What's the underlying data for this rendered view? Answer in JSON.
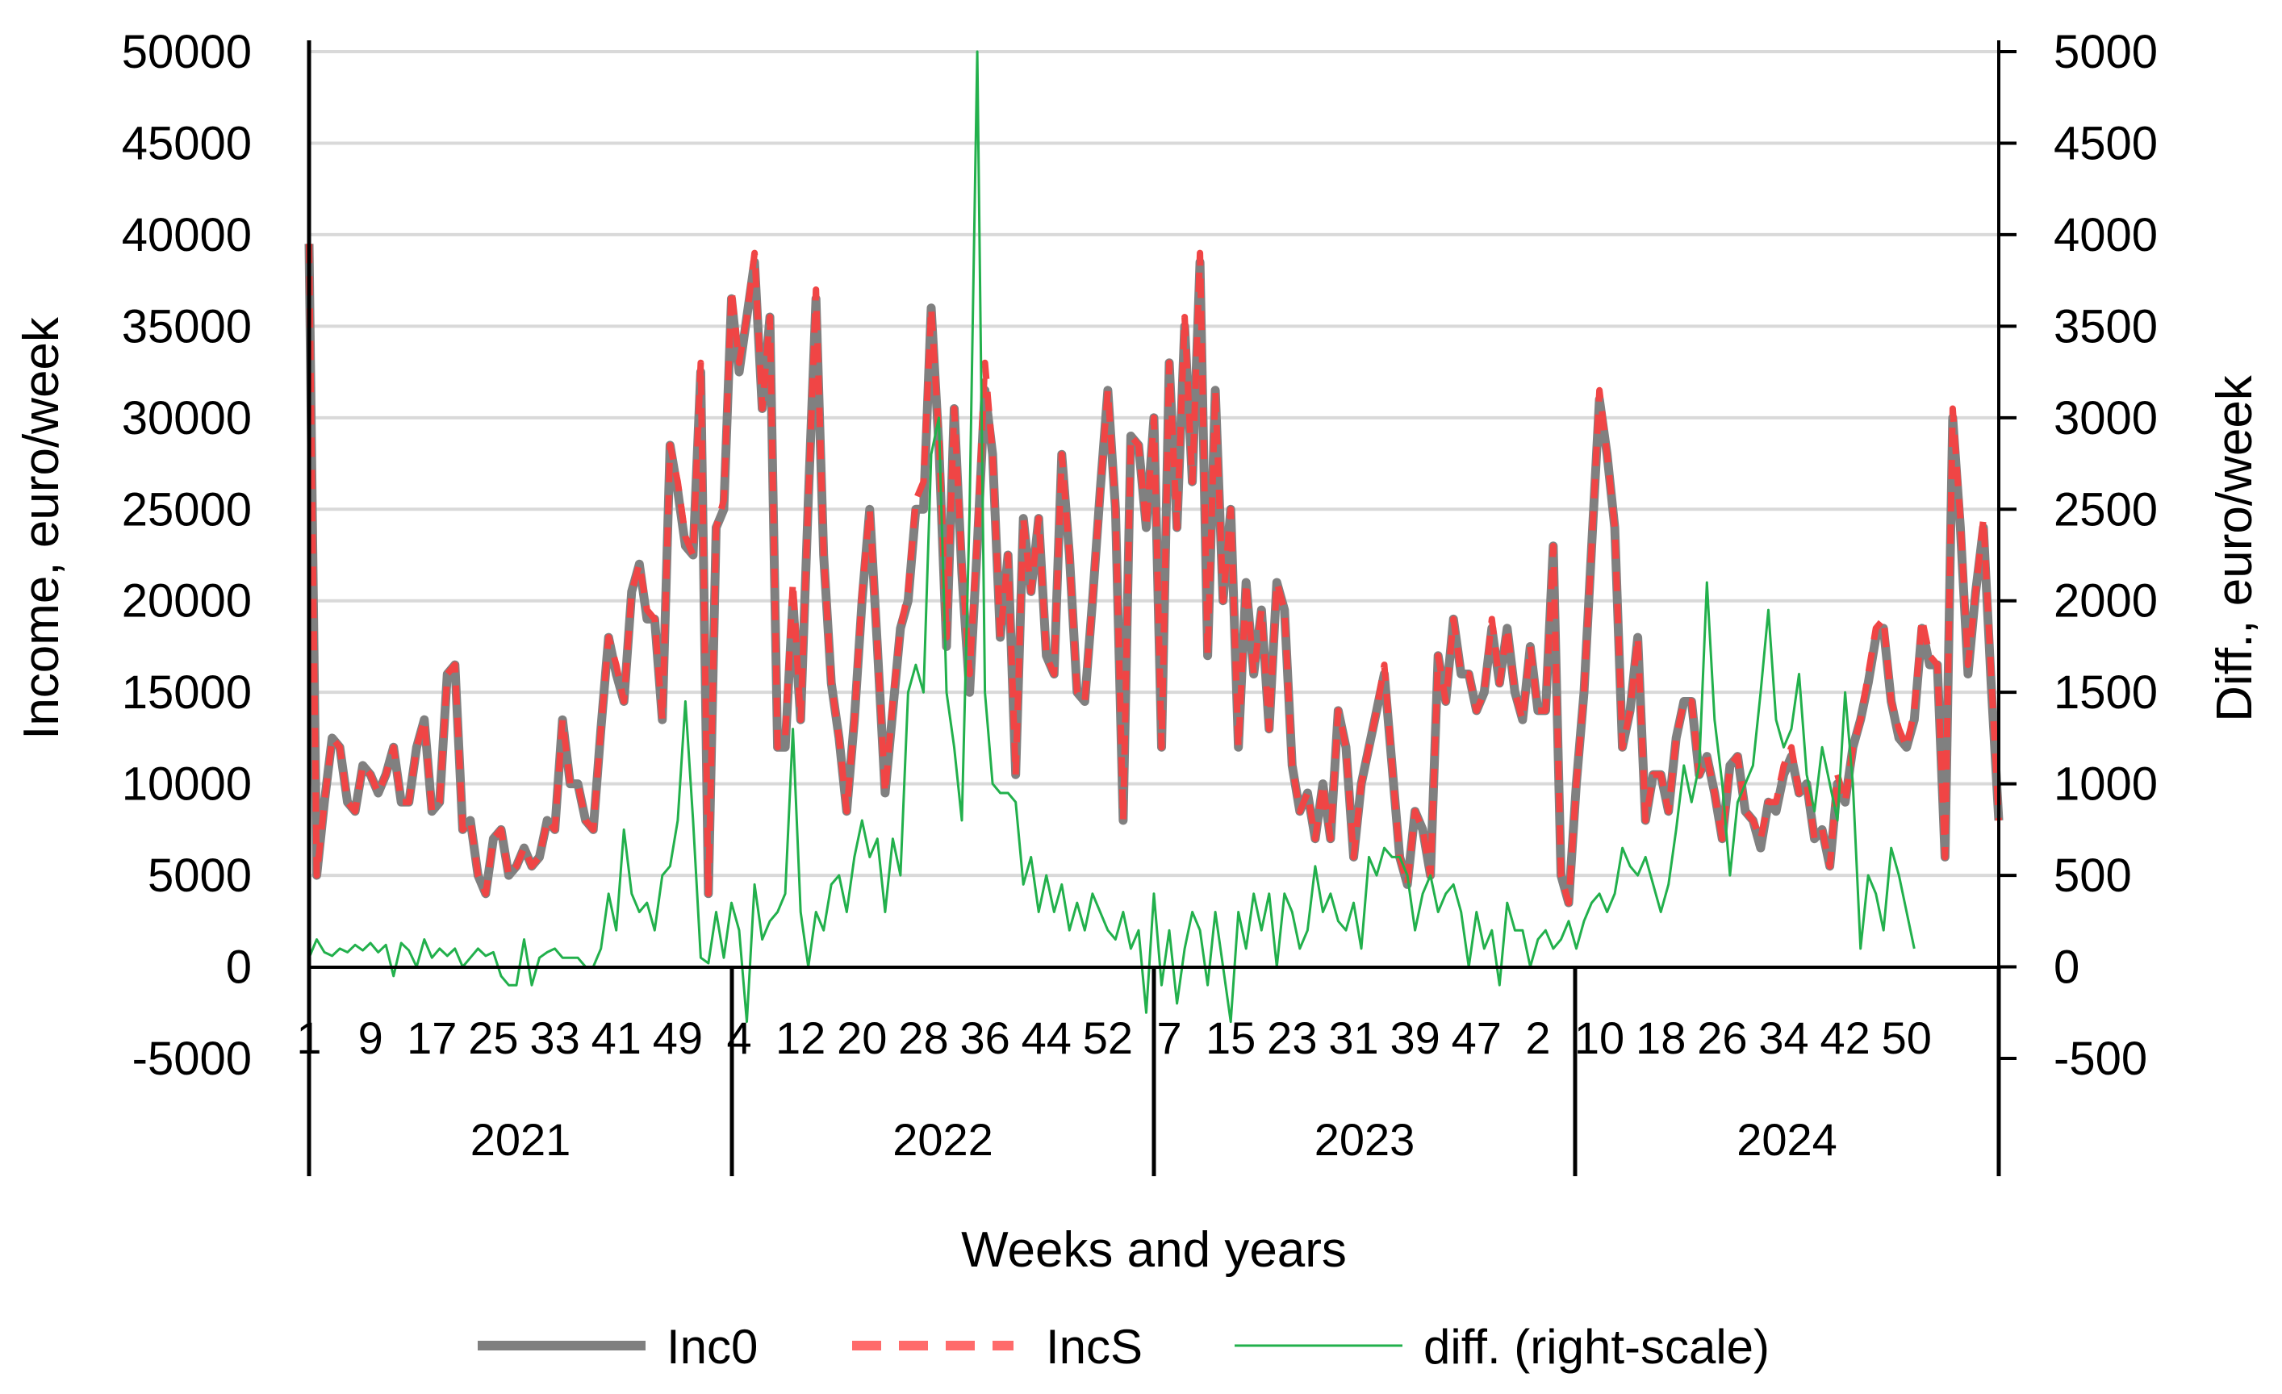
{
  "chart_data": {
    "type": "line",
    "title": "",
    "xlabel": "Weeks and years",
    "ylabel_left": "Income, euro/week",
    "ylabel_right": "Diff., euro/week",
    "ylim_left": [
      -5000,
      50000
    ],
    "ylim_right": [
      -500,
      5000
    ],
    "yticks_left": [
      "50000",
      "45000",
      "40000",
      "35000",
      "30000",
      "25000",
      "20000",
      "15000",
      "10000",
      "5000",
      "0",
      "-5000"
    ],
    "yticks_right": [
      "5000",
      "4500",
      "4000",
      "3500",
      "3000",
      "2500",
      "2000",
      "1500",
      "1000",
      "500",
      "0",
      "-500"
    ],
    "years": [
      "2021",
      "2022",
      "2023",
      "2024"
    ],
    "week_tick_labels": [
      "1",
      "9",
      "17",
      "25",
      "33",
      "41",
      "49",
      "4",
      "12",
      "20",
      "28",
      "36",
      "44",
      "52",
      "7",
      "15",
      "23",
      "31",
      "39",
      "47",
      "2",
      "10",
      "18",
      "26",
      "34",
      "42",
      "50"
    ],
    "legend": [
      {
        "key": "inc0",
        "label": "Inc0",
        "color": "#808080",
        "style": "solid"
      },
      {
        "key": "incs",
        "label": "IncS",
        "color": "#FF5A5A",
        "style": "dashed"
      },
      {
        "key": "diff",
        "label": "diff. (right-scale)",
        "color": "#22B04C",
        "style": "solid-thin"
      }
    ],
    "series": [
      {
        "name": "Inc0",
        "axis": "left",
        "values": [
          39500,
          5000,
          9000,
          12500,
          12000,
          9000,
          8500,
          11000,
          10500,
          9500,
          10500,
          12000,
          9000,
          9000,
          12000,
          13500,
          8500,
          9000,
          16000,
          16500,
          7500,
          8000,
          5000,
          4000,
          7000,
          7500,
          5000,
          5500,
          6500,
          5500,
          6000,
          8000,
          7500,
          13500,
          10000,
          10000,
          8000,
          7500,
          13000,
          18000,
          16000,
          14500,
          20500,
          22000,
          19000,
          19000,
          13500,
          28500,
          26000,
          23000,
          22500,
          32500,
          4000,
          24000,
          25000,
          36500,
          32500,
          35500,
          38500,
          30500,
          35500,
          12000,
          12000,
          20000,
          13500,
          25500,
          36500,
          22500,
          15500,
          12500,
          8500,
          13500,
          20000,
          25000,
          17500,
          9500,
          14000,
          18500,
          20000,
          25000,
          25000,
          36000,
          28500,
          17500,
          30500,
          21500,
          15000,
          23000,
          31500,
          28000,
          18000,
          22500,
          10500,
          24500,
          20500,
          24500,
          17000,
          16000,
          28000,
          22500,
          15000,
          14500,
          20000,
          26000,
          31500,
          25000,
          8000,
          29000,
          28500,
          24000,
          30000,
          12000,
          33000,
          24000,
          35000,
          26500,
          38500,
          17000,
          31500,
          20000,
          25000,
          12000,
          21000,
          16000,
          19500,
          13000,
          21000,
          19500,
          11000,
          8500,
          9500,
          7000,
          10000,
          7000,
          14000,
          12000,
          6000,
          10000,
          12000,
          14000,
          16000,
          11000,
          6000,
          4500,
          8500,
          7500,
          5000,
          17000,
          14500,
          19000,
          16000,
          16000,
          14000,
          15000,
          18500,
          15500,
          18500,
          15000,
          13500,
          17500,
          14000,
          14000,
          23000,
          5000,
          3500,
          10000,
          15000,
          23000,
          31000,
          28000,
          24000,
          12000,
          14000,
          18000,
          8000,
          10500,
          10500,
          8500,
          12500,
          14500,
          14500,
          10500,
          11500,
          9500,
          7000,
          11000,
          11500,
          8500,
          8000,
          6500,
          9000,
          8500,
          10500,
          11500,
          9500,
          10000,
          7000,
          7500,
          5500,
          10000,
          9000,
          12000,
          13500,
          15500,
          18000,
          18500,
          14500,
          12500,
          12000,
          13500,
          18500,
          16500,
          16500,
          6000,
          30000,
          24000,
          16000,
          20500,
          24000,
          15500,
          8000
        ]
      },
      {
        "name": "IncS",
        "axis": "left",
        "values": [
          39500,
          5000,
          9000,
          12500,
          12000,
          9000,
          8500,
          11000,
          10500,
          9500,
          10500,
          12000,
          9000,
          9000,
          12000,
          13500,
          8500,
          9000,
          16000,
          16500,
          7500,
          8000,
          5000,
          4000,
          7000,
          7500,
          5000,
          5500,
          6500,
          5500,
          6000,
          8000,
          7500,
          13500,
          10000,
          10000,
          8000,
          7500,
          13000,
          18000,
          16500,
          14500,
          20500,
          22000,
          19500,
          19000,
          13500,
          28500,
          26500,
          23500,
          22500,
          33000,
          4000,
          24000,
          25500,
          37000,
          33000,
          35500,
          39000,
          30500,
          35500,
          12000,
          12500,
          21000,
          13500,
          25500,
          37000,
          22500,
          15500,
          12500,
          8500,
          13500,
          20500,
          25000,
          17500,
          9500,
          14500,
          18500,
          20500,
          25500,
          26500,
          36000,
          29000,
          18000,
          30500,
          22000,
          16000,
          23500,
          33000,
          28000,
          18000,
          22500,
          10500,
          24500,
          20500,
          24500,
          17000,
          16000,
          28000,
          22500,
          15000,
          14500,
          20000,
          26000,
          31500,
          25000,
          8000,
          29000,
          28500,
          24000,
          30000,
          12000,
          33000,
          24000,
          35500,
          26500,
          39000,
          17000,
          31500,
          20000,
          25000,
          12000,
          21000,
          16000,
          19500,
          13000,
          21000,
          19500,
          11000,
          8500,
          9500,
          7000,
          10000,
          7000,
          14000,
          12000,
          6000,
          10000,
          12000,
          14000,
          16500,
          11000,
          6000,
          4500,
          8500,
          7500,
          5000,
          17000,
          14500,
          19000,
          16000,
          16000,
          14000,
          15000,
          19000,
          15500,
          18500,
          15000,
          13500,
          17500,
          14000,
          14000,
          23000,
          5000,
          3500,
          10000,
          15000,
          23000,
          31500,
          28000,
          24000,
          12000,
          14000,
          18000,
          8000,
          10500,
          10500,
          8500,
          12500,
          14500,
          14500,
          10500,
          11500,
          9500,
          7000,
          11000,
          11500,
          8500,
          8000,
          7000,
          9000,
          9000,
          11000,
          12000,
          9500,
          10000,
          7000,
          7500,
          5500,
          10500,
          9000,
          12000,
          13500,
          16000,
          18500,
          19000,
          14500,
          13000,
          12000,
          14000,
          19000,
          17000,
          16500,
          6000,
          30500,
          24500,
          16500,
          20500,
          24500,
          16000,
          8000
        ]
      },
      {
        "name": "diff. (right-scale)",
        "axis": "right",
        "values": [
          50,
          150,
          80,
          60,
          100,
          80,
          120,
          90,
          130,
          80,
          120,
          -50,
          130,
          90,
          0,
          150,
          50,
          100,
          60,
          100,
          0,
          50,
          100,
          60,
          80,
          -50,
          -100,
          -100,
          150,
          -100,
          50,
          80,
          100,
          50,
          50,
          50,
          0,
          0,
          100,
          400,
          200,
          750,
          400,
          300,
          350,
          200,
          500,
          550,
          800,
          1450,
          800,
          50,
          20,
          300,
          50,
          350,
          200,
          -300,
          450,
          150,
          250,
          300,
          400,
          1300,
          300,
          0,
          300,
          200,
          450,
          500,
          300,
          600,
          800,
          600,
          700,
          300,
          700,
          500,
          1500,
          1650,
          1500,
          2800,
          3000,
          1500,
          1200,
          800,
          2500,
          5000,
          1500,
          1000,
          950,
          950,
          900,
          450,
          600,
          300,
          500,
          300,
          450,
          200,
          350,
          200,
          400,
          300,
          200,
          150,
          300,
          100,
          200,
          -250,
          400,
          -100,
          200,
          -200,
          100,
          300,
          200,
          -100,
          300,
          0,
          -300,
          300,
          100,
          400,
          200,
          400,
          0,
          400,
          300,
          100,
          200,
          550,
          300,
          400,
          250,
          200,
          350,
          100,
          600,
          500,
          650,
          600,
          600,
          500,
          200,
          400,
          500,
          300,
          400,
          450,
          300,
          0,
          300,
          100,
          200,
          -100,
          350,
          200,
          200,
          0,
          150,
          200,
          100,
          150,
          250,
          100,
          250,
          350,
          400,
          300,
          400,
          650,
          550,
          500,
          600,
          450,
          300,
          450,
          750,
          1100,
          900,
          1100,
          2100,
          1350,
          1000,
          500,
          900,
          1000,
          1100,
          1500,
          1950,
          1350,
          1200,
          1300,
          1600,
          1050,
          850,
          1200,
          1000,
          800,
          1500,
          1000,
          100,
          500,
          400,
          200,
          650,
          500,
          300,
          100
        ]
      }
    ]
  }
}
